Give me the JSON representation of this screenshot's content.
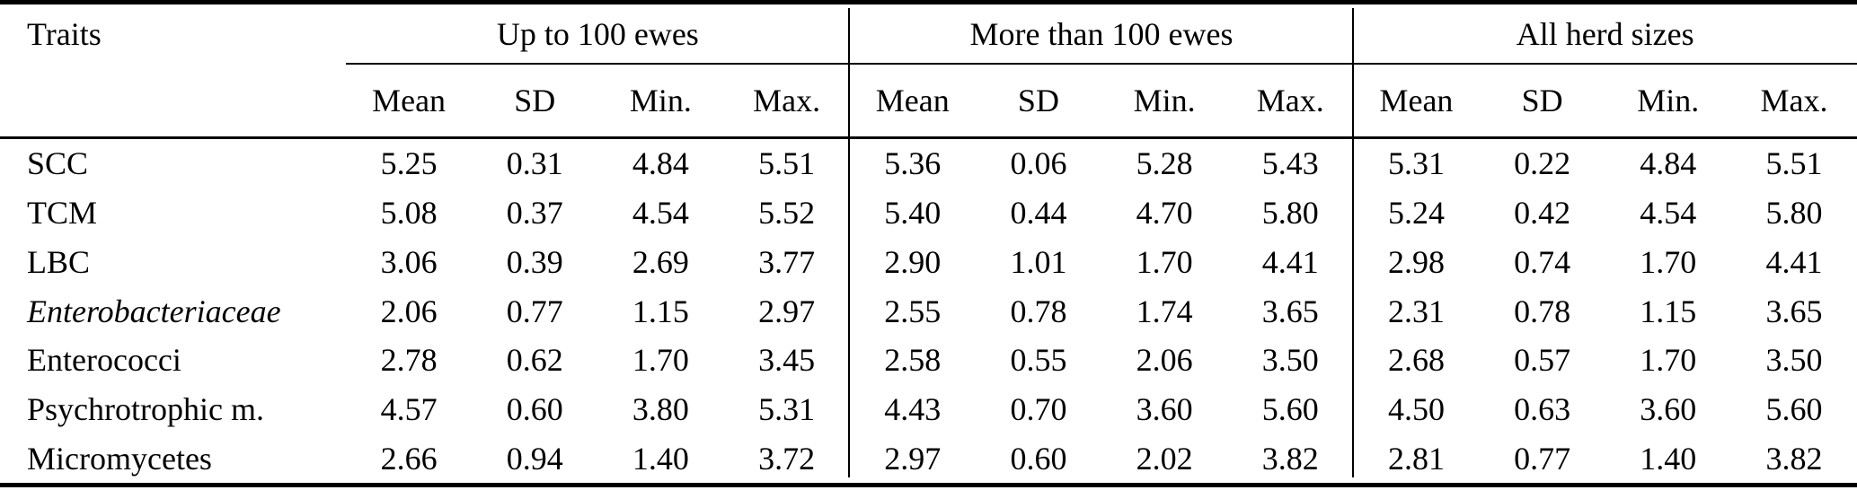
{
  "table": {
    "corner_label": "Traits",
    "groups": [
      {
        "label": "Up to 100 ewes",
        "sub_headers": [
          "Mean",
          "SD",
          "Min.",
          "Max."
        ]
      },
      {
        "label": "More than 100 ewes",
        "sub_headers": [
          "Mean",
          "SD",
          "Min.",
          "Max."
        ]
      },
      {
        "label": "All herd sizes",
        "sub_headers": [
          "Mean",
          "SD",
          "Min.",
          "Max."
        ]
      }
    ],
    "rows": [
      {
        "trait": "SCC",
        "italic": false,
        "values": [
          [
            "5.25",
            "0.31",
            "4.84",
            "5.51"
          ],
          [
            "5.36",
            "0.06",
            "5.28",
            "5.43"
          ],
          [
            "5.31",
            "0.22",
            "4.84",
            "5.51"
          ]
        ]
      },
      {
        "trait": "TCM",
        "italic": false,
        "values": [
          [
            "5.08",
            "0.37",
            "4.54",
            "5.52"
          ],
          [
            "5.40",
            "0.44",
            "4.70",
            "5.80"
          ],
          [
            "5.24",
            "0.42",
            "4.54",
            "5.80"
          ]
        ]
      },
      {
        "trait": "LBC",
        "italic": false,
        "values": [
          [
            "3.06",
            "0.39",
            "2.69",
            "3.77"
          ],
          [
            "2.90",
            "1.01",
            "1.70",
            "4.41"
          ],
          [
            "2.98",
            "0.74",
            "1.70",
            "4.41"
          ]
        ]
      },
      {
        "trait": "Enterobacteriaceae",
        "italic": true,
        "values": [
          [
            "2.06",
            "0.77",
            "1.15",
            "2.97"
          ],
          [
            "2.55",
            "0.78",
            "1.74",
            "3.65"
          ],
          [
            "2.31",
            "0.78",
            "1.15",
            "3.65"
          ]
        ]
      },
      {
        "trait": "Enterococci",
        "italic": false,
        "values": [
          [
            "2.78",
            "0.62",
            "1.70",
            "3.45"
          ],
          [
            "2.58",
            "0.55",
            "2.06",
            "3.50"
          ],
          [
            "2.68",
            "0.57",
            "1.70",
            "3.50"
          ]
        ]
      },
      {
        "trait": "Psychrotrophic m.",
        "italic": false,
        "values": [
          [
            "4.57",
            "0.60",
            "3.80",
            "5.31"
          ],
          [
            "4.43",
            "0.70",
            "3.60",
            "5.60"
          ],
          [
            "4.50",
            "0.63",
            "3.60",
            "5.60"
          ]
        ]
      },
      {
        "trait": "Micromycetes",
        "italic": false,
        "values": [
          [
            "2.66",
            "0.94",
            "1.40",
            "3.72"
          ],
          [
            "2.97",
            "0.60",
            "2.02",
            "3.82"
          ],
          [
            "2.81",
            "0.77",
            "1.40",
            "3.82"
          ]
        ]
      }
    ]
  }
}
